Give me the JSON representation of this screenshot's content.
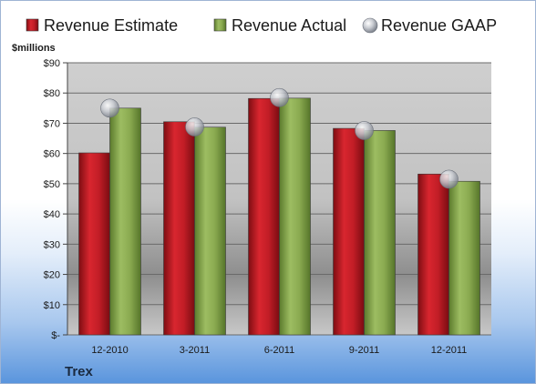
{
  "chart_data": {
    "type": "bar",
    "title": "",
    "company": "Trex",
    "ylabel": "$millions",
    "ylim": [
      0,
      90
    ],
    "ytick_step": 10,
    "ytick_labels": [
      "$-",
      "$10",
      "$20",
      "$30",
      "$40",
      "$50",
      "$60",
      "$70",
      "$80",
      "$90"
    ],
    "categories": [
      "12-2010",
      "3-2011",
      "6-2011",
      "9-2011",
      "12-2011"
    ],
    "series": [
      {
        "name": "Revenue Estimate",
        "type": "bar",
        "color": "#c0202a",
        "values": [
          60.2,
          70.5,
          78.2,
          68.3,
          53.2
        ]
      },
      {
        "name": "Revenue Actual",
        "type": "bar",
        "color": "#8bab52",
        "values": [
          75.0,
          68.7,
          78.3,
          67.6,
          50.8
        ]
      },
      {
        "name": "Revenue GAAP",
        "type": "marker",
        "color": "#b8bcc4",
        "values": [
          75.0,
          68.8,
          78.5,
          67.6,
          51.5
        ]
      }
    ],
    "legend_position": "top",
    "grid": true
  }
}
